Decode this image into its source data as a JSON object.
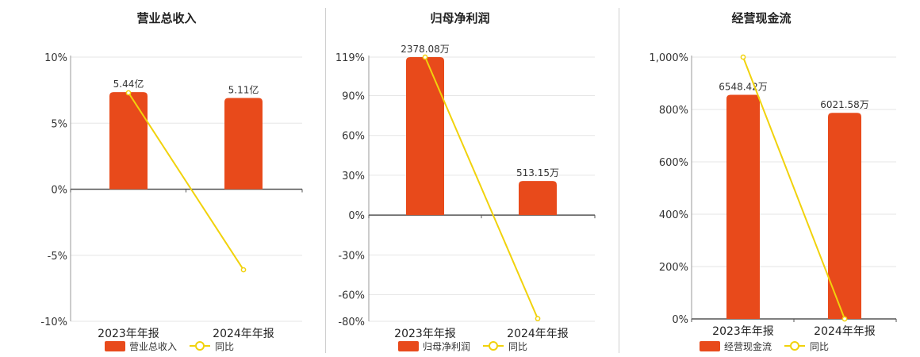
{
  "chart_data": [
    {
      "type": "bar",
      "title": "营业总收入",
      "categories": [
        "2023年年报",
        "2024年年报"
      ],
      "series": [
        {
          "name": "营业总收入",
          "type": "bar",
          "axis": "right",
          "values": [
            5.44,
            5.11
          ],
          "labels": [
            "5.44亿",
            "5.11亿"
          ],
          "unit": "亿"
        },
        {
          "name": "同比",
          "type": "line",
          "axis": "left",
          "values": [
            7.3,
            -6.1
          ],
          "unit": "%"
        }
      ],
      "y_left": {
        "range": [
          -10,
          10
        ],
        "ticks": [
          10,
          5,
          0,
          -5,
          -10
        ],
        "tick_labels": [
          "10%",
          "5%",
          "0%",
          "-5%",
          "-10%"
        ]
      },
      "bar_scale": [
        -7.4,
        7.4
      ],
      "legend": "bottom",
      "grid": true
    },
    {
      "type": "bar",
      "title": "归母净利润",
      "categories": [
        "2023年年报",
        "2024年年报"
      ],
      "series": [
        {
          "name": "归母净利润",
          "type": "bar",
          "axis": "right",
          "values": [
            2378.08,
            513.15
          ],
          "labels": [
            "2378.08万",
            "513.15万"
          ],
          "unit": "万"
        },
        {
          "name": "同比",
          "type": "line",
          "axis": "left",
          "values": [
            119,
            -78
          ],
          "unit": "%"
        }
      ],
      "y_left": {
        "range": [
          -80,
          119
        ],
        "ticks": [
          119,
          90,
          60,
          30,
          0,
          -30,
          -60,
          -80
        ],
        "tick_labels": [
          "119%",
          "90%",
          "60%",
          "30%",
          "0%",
          "-30%",
          "-60%",
          "-80%"
        ]
      },
      "bar_scale": [
        -1600,
        2378.08
      ],
      "legend": "bottom",
      "grid": true
    },
    {
      "type": "bar",
      "title": "经营现金流",
      "categories": [
        "2023年年报",
        "2024年年报"
      ],
      "series": [
        {
          "name": "经营现金流",
          "type": "bar",
          "axis": "right",
          "values": [
            6548.42,
            6021.58
          ],
          "labels": [
            "6548.42万",
            "6021.58万"
          ],
          "unit": "万"
        },
        {
          "name": "同比",
          "type": "line",
          "axis": "left",
          "values": [
            1000,
            0
          ],
          "unit": "%"
        }
      ],
      "y_left": {
        "range": [
          0,
          1000
        ],
        "ticks": [
          1000,
          800,
          600,
          400,
          200,
          0
        ],
        "tick_labels": [
          "1,000%",
          "800%",
          "600%",
          "400%",
          "200%",
          "0%"
        ]
      },
      "bar_scale": [
        0,
        7650
      ],
      "legend": "bottom",
      "grid": true
    }
  ],
  "colors": {
    "bar": "#e84a1b",
    "line": "#f1d20c",
    "grid": "#e6e6e6",
    "axis": "#555555"
  }
}
